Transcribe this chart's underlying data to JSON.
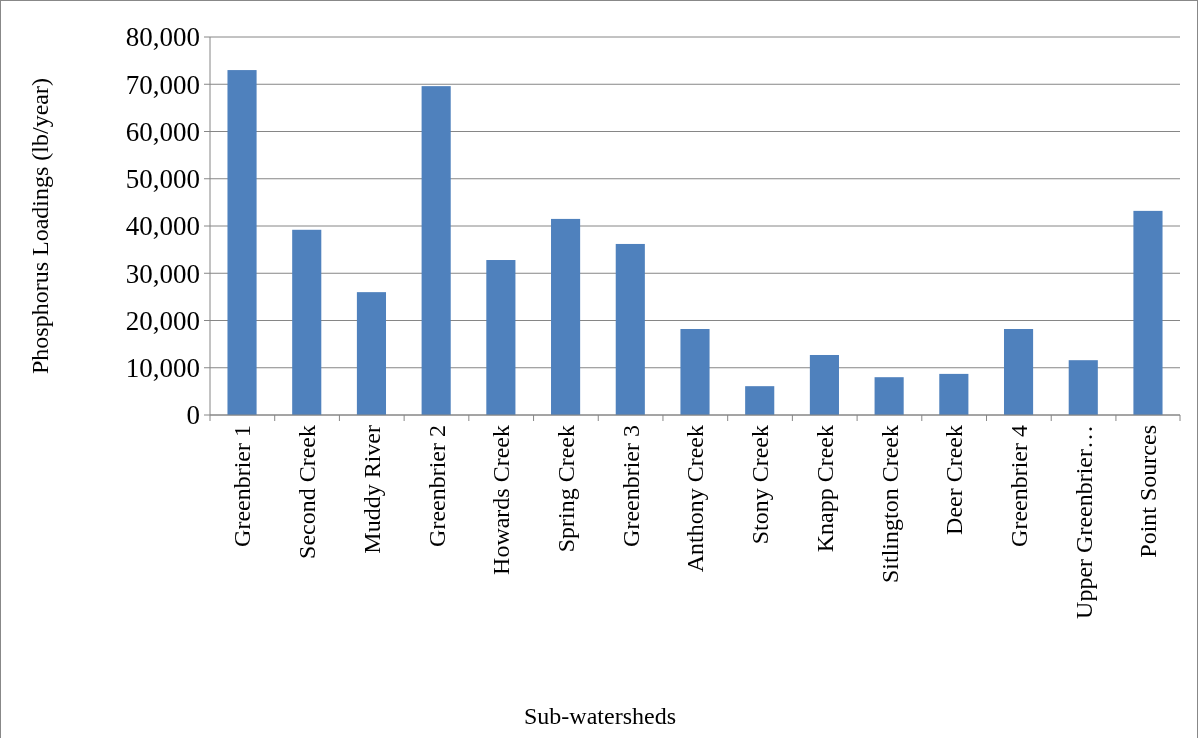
{
  "chart_data": {
    "type": "bar",
    "xlabel": "Sub-watersheds",
    "ylabel": "Phosphorus Loadings (lb/year)",
    "categories": [
      "Greenbrier 1",
      "Second Creek",
      "Muddy River",
      "Greenbrier 2",
      "Howards Creek",
      "Spring Creek",
      "Greenbrier 3",
      "Anthony Creek",
      "Stony Creek",
      "Knapp Creek",
      "Sitlington Creek",
      "Deer Creek",
      "Greenbrier 4",
      "Upper Greenbrier…",
      "Point Sources"
    ],
    "values": [
      73000,
      39200,
      26000,
      69600,
      32800,
      41500,
      36200,
      18200,
      6100,
      12700,
      8000,
      8700,
      18200,
      11600,
      43200
    ],
    "color": "#4f81bd",
    "ylim": [
      0,
      80000
    ],
    "yticks": [
      {
        "value": 0,
        "label": "0"
      },
      {
        "value": 10000,
        "label": "10,000"
      },
      {
        "value": 20000,
        "label": "20,000"
      },
      {
        "value": 30000,
        "label": "30,000"
      },
      {
        "value": 40000,
        "label": "40,000"
      },
      {
        "value": 50000,
        "label": "50,000"
      },
      {
        "value": 60000,
        "label": "60,000"
      },
      {
        "value": 70000,
        "label": "70,000"
      },
      {
        "value": 80000,
        "label": "80,000"
      }
    ],
    "grid": "y"
  }
}
